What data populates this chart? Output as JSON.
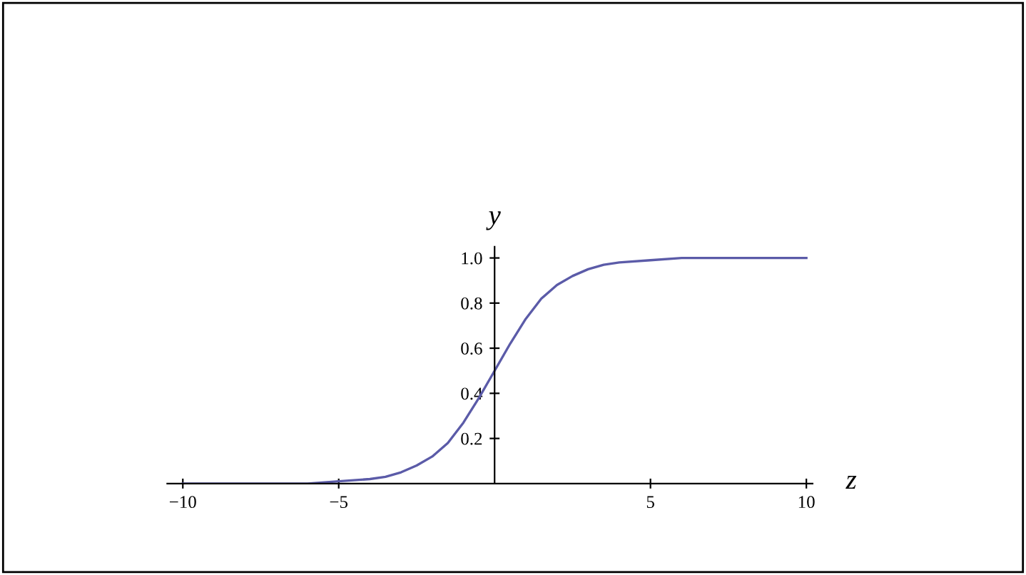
{
  "chart_data": {
    "type": "line",
    "xlabel": "z",
    "ylabel": "y",
    "series": [
      {
        "color": "#5b5ba8",
        "x": [
          -10,
          -8,
          -6,
          -5,
          -4,
          -3.5,
          -3,
          -2.5,
          -2,
          -1.5,
          -1,
          -0.5,
          0,
          0.5,
          1,
          1.5,
          2,
          2.5,
          3,
          3.5,
          4,
          5,
          6,
          8,
          10
        ],
        "values": [
          0.0,
          0.0,
          0.0,
          0.01,
          0.02,
          0.03,
          0.05,
          0.08,
          0.12,
          0.18,
          0.27,
          0.38,
          0.5,
          0.62,
          0.73,
          0.82,
          0.88,
          0.92,
          0.95,
          0.97,
          0.98,
          0.99,
          1.0,
          1.0,
          1.0
        ]
      }
    ],
    "xlim": [
      -10.5,
      10.2
    ],
    "ylim": [
      0,
      1.05
    ],
    "xticks": [
      {
        "value": -10,
        "label": "−10"
      },
      {
        "value": -5,
        "label": "−5"
      },
      5,
      10
    ],
    "yticks": [
      0.2,
      0.4,
      0.6,
      0.8,
      {
        "value": 1,
        "label": "1.0"
      }
    ],
    "grid": false,
    "legend": false,
    "marker": "none",
    "line_style": "solid"
  }
}
